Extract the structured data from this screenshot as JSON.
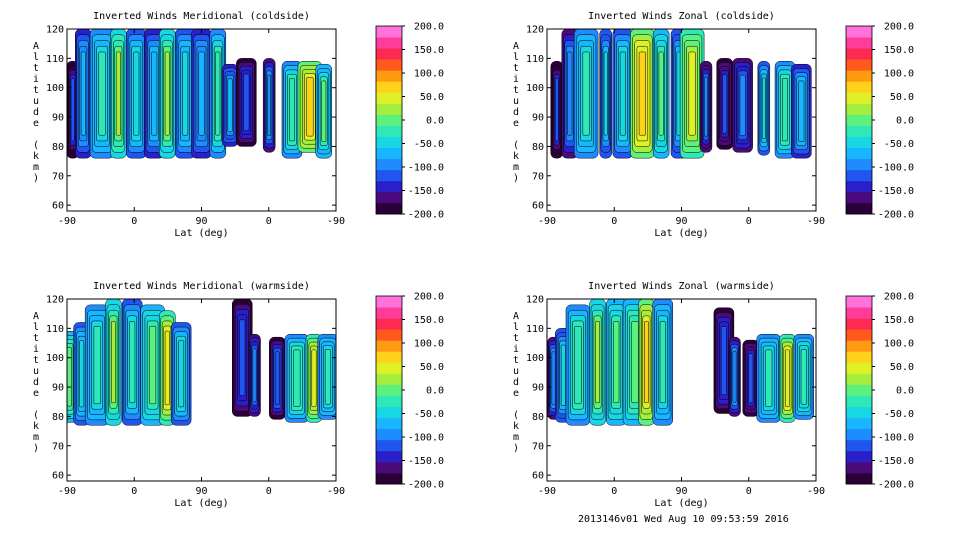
{
  "footer": "2013146v01 Wed Aug 10 09:53:59 2016",
  "chart_data": [
    {
      "type": "heatmap",
      "title": "Inverted Winds Meridional (coldside)",
      "xlabel": "Lat (deg)",
      "ylabel": "Altitude (km)",
      "x_ticks": [
        "-90",
        "0",
        "90",
        "0",
        "-90"
      ],
      "y_ticks": [
        "60",
        "70",
        "80",
        "90",
        "100",
        "110",
        "120"
      ],
      "ylim": [
        58,
        120
      ],
      "colorbar": {
        "labels": [
          "200.0",
          "150.0",
          "100.0",
          "50.0",
          "0.0",
          "-50.0",
          "-100.0",
          "-150.0",
          "-200.0"
        ],
        "range": [
          -200,
          200
        ]
      },
      "columns": [
        {
          "x": -83,
          "bottom": 76,
          "top": 109,
          "value": -165
        },
        {
          "x": -70,
          "bottom": 76,
          "top": 120,
          "value": -105
        },
        {
          "x": -47,
          "bottom": 76,
          "top": 120,
          "value": -62
        },
        {
          "x": -27,
          "bottom": 76,
          "top": 120,
          "value": -15
        },
        {
          "x": -5,
          "bottom": 76,
          "top": 120,
          "value": -72
        },
        {
          "x": 17,
          "bottom": 76,
          "top": 120,
          "value": -95
        },
        {
          "x": 33,
          "bottom": 76,
          "top": 120,
          "value": -18
        },
        {
          "x": 55,
          "bottom": 76,
          "top": 120,
          "value": -78
        },
        {
          "x": 75,
          "bottom": 76,
          "top": 120,
          "value": -102
        },
        {
          "x": 95,
          "bottom": 76,
          "top": 120,
          "value": -48
        },
        {
          "x": 110,
          "bottom": 80,
          "top": 108,
          "value": -110
        },
        {
          "x": 130,
          "bottom": 80,
          "top": 110,
          "value": -150
        },
        {
          "x": 158,
          "bottom": 78,
          "top": 110,
          "value": -120
        },
        {
          "x": 186,
          "bottom": 76,
          "top": 109,
          "value": -50
        },
        {
          "x": 208,
          "bottom": 78,
          "top": 109,
          "value": 30
        },
        {
          "x": 225,
          "bottom": 76,
          "top": 108,
          "value": -45
        }
      ]
    },
    {
      "type": "heatmap",
      "title": "Inverted Winds Zonal (coldside)",
      "xlabel": "Lat (deg)",
      "ylabel": "Altitude (km)",
      "x_ticks": [
        "-90",
        "0",
        "90",
        "0",
        "-90"
      ],
      "y_ticks": [
        "60",
        "70",
        "80",
        "90",
        "100",
        "110",
        "120"
      ],
      "ylim": [
        58,
        120
      ],
      "colorbar": {
        "labels": [
          "200.0",
          "150.0",
          "100.0",
          "50.0",
          "0.0",
          "-50.0",
          "-100.0",
          "-150.0",
          "-200.0"
        ],
        "range": [
          -200,
          200
        ]
      },
      "columns": [
        {
          "x": -78,
          "bottom": 76,
          "top": 109,
          "value": -165
        },
        {
          "x": -62,
          "bottom": 76,
          "top": 120,
          "value": -120
        },
        {
          "x": -42,
          "bottom": 76,
          "top": 120,
          "value": -60
        },
        {
          "x": -18,
          "bottom": 76,
          "top": 120,
          "value": -90
        },
        {
          "x": 3,
          "bottom": 76,
          "top": 120,
          "value": -75
        },
        {
          "x": 27,
          "bottom": 76,
          "top": 120,
          "value": 40
        },
        {
          "x": 50,
          "bottom": 76,
          "top": 120,
          "value": -40
        },
        {
          "x": 72,
          "bottom": 76,
          "top": 120,
          "value": -88
        },
        {
          "x": 88,
          "bottom": 76,
          "top": 120,
          "value": 10
        },
        {
          "x": 105,
          "bottom": 78,
          "top": 109,
          "value": -140
        },
        {
          "x": 128,
          "bottom": 79,
          "top": 110,
          "value": -155
        },
        {
          "x": 150,
          "bottom": 78,
          "top": 110,
          "value": -130
        },
        {
          "x": 176,
          "bottom": 77,
          "top": 109,
          "value": -80
        },
        {
          "x": 202,
          "bottom": 76,
          "top": 109,
          "value": -50
        },
        {
          "x": 222,
          "bottom": 76,
          "top": 108,
          "value": -100
        }
      ]
    },
    {
      "type": "heatmap",
      "title": "Inverted Winds Meridional (warmside)",
      "xlabel": "Lat (deg)",
      "ylabel": "Altitude (km)",
      "x_ticks": [
        "-90",
        "0",
        "90",
        "0",
        "-90"
      ],
      "y_ticks": [
        "60",
        "70",
        "80",
        "90",
        "100",
        "110",
        "120"
      ],
      "ylim": [
        58,
        120
      ],
      "colorbar": {
        "labels": [
          "200.0",
          "150.0",
          "100.0",
          "50.0",
          "0.0",
          "-50.0",
          "-100.0",
          "-150.0",
          "-200.0"
        ],
        "range": [
          -200,
          200
        ]
      },
      "columns": [
        {
          "x": -87,
          "bottom": 78,
          "top": 109,
          "value": -30
        },
        {
          "x": -72,
          "bottom": 77,
          "top": 112,
          "value": -80
        },
        {
          "x": -53,
          "bottom": 77,
          "top": 118,
          "value": -60
        },
        {
          "x": -33,
          "bottom": 77,
          "top": 120,
          "value": -20
        },
        {
          "x": -10,
          "bottom": 77,
          "top": 120,
          "value": -70
        },
        {
          "x": 15,
          "bottom": 77,
          "top": 118,
          "value": -40
        },
        {
          "x": 33,
          "bottom": 77,
          "top": 116,
          "value": 20
        },
        {
          "x": 50,
          "bottom": 77,
          "top": 112,
          "value": -75
        },
        {
          "x": 125,
          "bottom": 80,
          "top": 120,
          "value": -150
        },
        {
          "x": 140,
          "bottom": 80,
          "top": 108,
          "value": -130
        },
        {
          "x": 168,
          "bottom": 79,
          "top": 107,
          "value": -145
        },
        {
          "x": 192,
          "bottom": 78,
          "top": 108,
          "value": -50
        },
        {
          "x": 213,
          "bottom": 78,
          "top": 108,
          "value": 15
        },
        {
          "x": 230,
          "bottom": 79,
          "top": 108,
          "value": -60
        }
      ]
    },
    {
      "type": "heatmap",
      "title": "Inverted Winds Zonal (warmside)",
      "xlabel": "Lat (deg)",
      "ylabel": "Altitude (km)",
      "x_ticks": [
        "-90",
        "0",
        "90",
        "0",
        "-90"
      ],
      "y_ticks": [
        "60",
        "70",
        "80",
        "90",
        "100",
        "110",
        "120"
      ],
      "ylim": [
        58,
        120
      ],
      "colorbar": {
        "labels": [
          "200.0",
          "150.0",
          "100.0",
          "50.0",
          "0.0",
          "-50.0",
          "-100.0",
          "-150.0",
          "-200.0"
        ],
        "range": [
          -200,
          200
        ]
      },
      "columns": [
        {
          "x": -82,
          "bottom": 79,
          "top": 107,
          "value": -120
        },
        {
          "x": -70,
          "bottom": 78,
          "top": 110,
          "value": -90
        },
        {
          "x": -52,
          "bottom": 77,
          "top": 118,
          "value": -50
        },
        {
          "x": -28,
          "bottom": 77,
          "top": 120,
          "value": -20
        },
        {
          "x": -5,
          "bottom": 77,
          "top": 120,
          "value": -40
        },
        {
          "x": 18,
          "bottom": 77,
          "top": 120,
          "value": -35
        },
        {
          "x": 32,
          "bottom": 77,
          "top": 120,
          "value": 35
        },
        {
          "x": 52,
          "bottom": 77,
          "top": 120,
          "value": -60
        },
        {
          "x": 127,
          "bottom": 81,
          "top": 117,
          "value": -150
        },
        {
          "x": 140,
          "bottom": 80,
          "top": 107,
          "value": -120
        },
        {
          "x": 160,
          "bottom": 80,
          "top": 106,
          "value": -155
        },
        {
          "x": 182,
          "bottom": 78,
          "top": 108,
          "value": -60
        },
        {
          "x": 205,
          "bottom": 78,
          "top": 108,
          "value": 20
        },
        {
          "x": 225,
          "bottom": 79,
          "top": 108,
          "value": -55
        }
      ]
    }
  ]
}
